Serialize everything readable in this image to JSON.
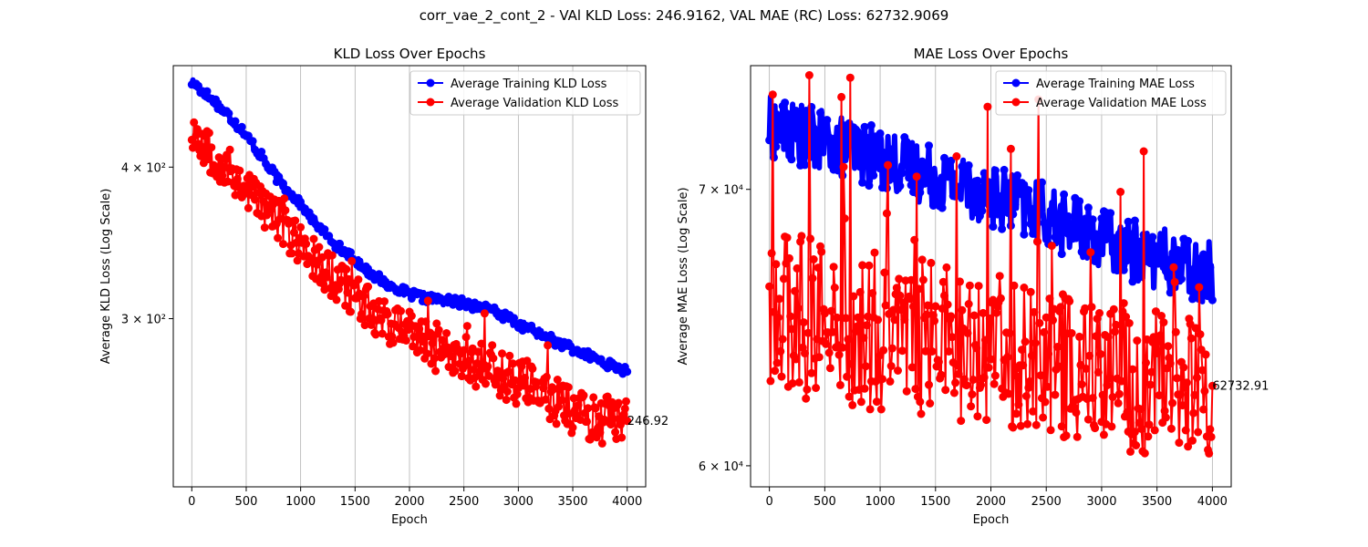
{
  "figure": {
    "suptitle": "corr_vae_2_cont_2 - VAl KLD Loss: 246.9162, VAL MAE (RC) Loss: 62732.9069"
  },
  "colors": {
    "training": "#0000ff",
    "validation": "#ff0000",
    "grid": "#b0b0b0",
    "axes": "#000000"
  },
  "chart_data": [
    {
      "type": "line",
      "title": "KLD Loss Over Epochs",
      "xlabel": "Epoch",
      "ylabel": "Average KLD Loss (Log Scale)",
      "yscale": "log",
      "xlim": [
        -170,
        4170
      ],
      "ylim": [
        218,
        485
      ],
      "xticks": [
        0,
        500,
        1000,
        1500,
        2000,
        2500,
        3000,
        3500,
        4000
      ],
      "xtick_labels": [
        "0",
        "500",
        "1000",
        "1500",
        "2000",
        "2500",
        "3000",
        "3500",
        "4000"
      ],
      "yticks": [
        300,
        400
      ],
      "ytick_labels": [
        "3 × 10²",
        "4 × 10²"
      ],
      "grid": "vertical",
      "legend_position": "top-right",
      "end_annotation": "246.92",
      "series": [
        {
          "name": "Average Training KLD Loss",
          "color": "#0000ff",
          "x": [
            0,
            250,
            500,
            750,
            1000,
            1250,
            1500,
            1750,
            2000,
            2250,
            2500,
            2750,
            3000,
            3250,
            3500,
            3750,
            4000
          ],
          "y": [
            470,
            450,
            425,
            395,
            372,
            350,
            335,
            322,
            314,
            311,
            309,
            305,
            297,
            290,
            283,
            277,
            271
          ]
        },
        {
          "name": "Average Validation KLD Loss",
          "color": "#ff0000",
          "x": [
            0,
            250,
            500,
            750,
            1000,
            1250,
            1500,
            1750,
            2000,
            2250,
            2500,
            2750,
            3000,
            3250,
            3500,
            3750,
            4000
          ],
          "y": [
            430,
            405,
            385,
            365,
            345,
            328,
            313,
            301,
            292,
            284,
            278,
            273,
            267,
            260,
            253,
            247,
            247
          ],
          "spread": [
            18,
            17,
            16,
            15,
            14,
            14,
            13,
            13,
            13,
            13,
            13,
            13,
            13,
            12,
            12,
            12,
            12
          ]
        }
      ]
    },
    {
      "type": "line",
      "title": "MAE Loss Over Epochs",
      "xlabel": "Epoch",
      "ylabel": "Average MAE Loss (Log Scale)",
      "yscale": "log",
      "xlim": [
        -170,
        4170
      ],
      "ylim": [
        59300,
        75000
      ],
      "xticks": [
        0,
        500,
        1000,
        1500,
        2000,
        2500,
        3000,
        3500,
        4000
      ],
      "xtick_labels": [
        "0",
        "500",
        "1000",
        "1500",
        "2000",
        "2500",
        "3000",
        "3500",
        "4000"
      ],
      "yticks": [
        60000,
        70000
      ],
      "ytick_labels": [
        "6 × 10⁴",
        "7 × 10⁴"
      ],
      "grid": "vertical",
      "legend_position": "top-right",
      "end_annotation": "62732.91",
      "series": [
        {
          "name": "Average Training MAE Loss",
          "color": "#0000ff",
          "x": [
            0,
            250,
            500,
            750,
            1000,
            1250,
            1500,
            1750,
            2000,
            2250,
            2500,
            2750,
            3000,
            3250,
            3500,
            3750,
            4000
          ],
          "y": [
            72500,
            72200,
            71900,
            71600,
            71200,
            70900,
            70500,
            70200,
            69800,
            69400,
            69000,
            68500,
            68100,
            67700,
            67400,
            67100,
            66800
          ]
        },
        {
          "name": "Average Validation MAE Loss",
          "color": "#ff0000",
          "x": [
            0,
            250,
            500,
            750,
            1000,
            1250,
            1500,
            1750,
            2000,
            2250,
            2500,
            2750,
            3000,
            3250,
            3500,
            3750,
            4000
          ],
          "y": [
            65500,
            65300,
            65100,
            64900,
            64700,
            64600,
            64500,
            64300,
            64100,
            63900,
            63700,
            63500,
            63200,
            63000,
            62900,
            62800,
            62733
          ],
          "spread": [
            3000,
            3000,
            2900,
            2900,
            2900,
            2800,
            2800,
            2800,
            2700,
            2700,
            2700,
            2600,
            2600,
            2600,
            2500,
            2500,
            2500
          ],
          "spikes": [
            {
              "x": 30,
              "y": 73800
            },
            {
              "x": 360,
              "y": 74600
            },
            {
              "x": 650,
              "y": 73700
            },
            {
              "x": 730,
              "y": 74500
            },
            {
              "x": 1330,
              "y": 70500
            },
            {
              "x": 1690,
              "y": 71300
            },
            {
              "x": 1970,
              "y": 73300
            },
            {
              "x": 2180,
              "y": 71600
            },
            {
              "x": 2430,
              "y": 73600
            },
            {
              "x": 3170,
              "y": 69900
            },
            {
              "x": 3380,
              "y": 71500
            }
          ]
        }
      ]
    }
  ]
}
